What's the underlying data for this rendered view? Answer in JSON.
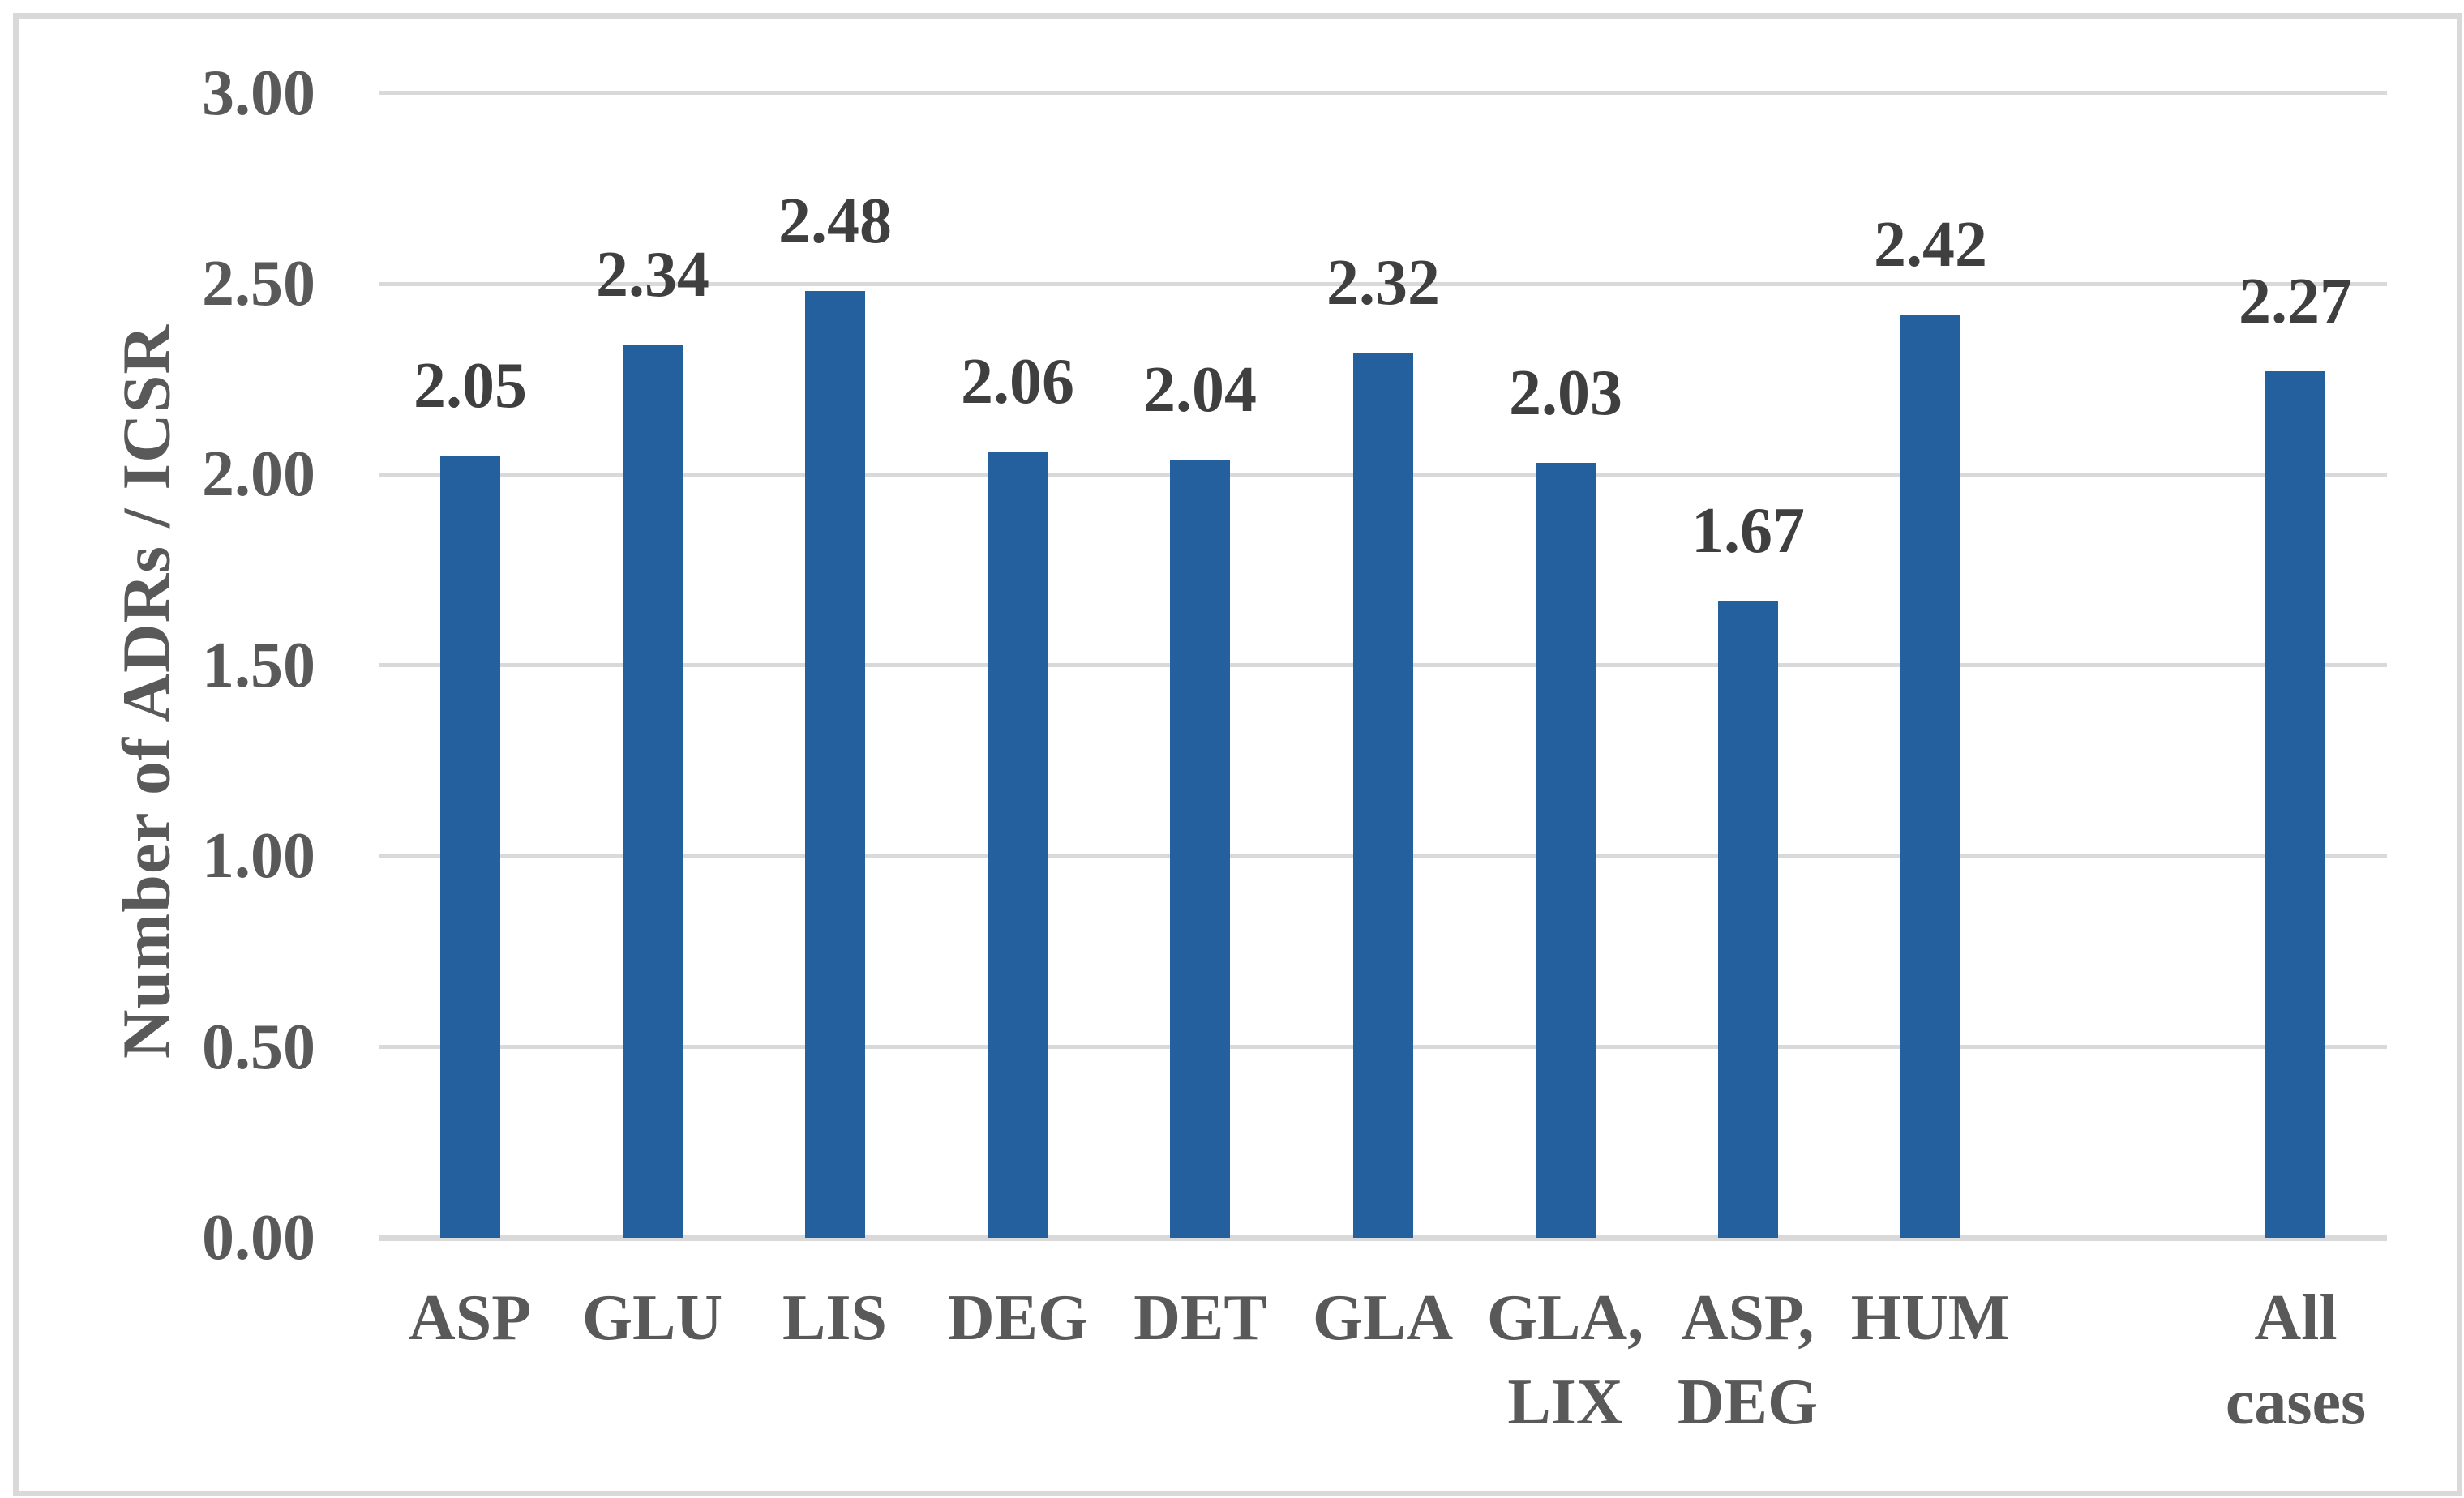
{
  "chart_data": {
    "type": "bar",
    "title": "",
    "xlabel": "",
    "ylabel": "Number of ADRs / ICSR",
    "categories": [
      [
        "ASP"
      ],
      [
        "GLU"
      ],
      [
        "LIS"
      ],
      [
        "DEG"
      ],
      [
        "DET"
      ],
      [
        "GLA"
      ],
      [
        "GLA,",
        "LIX"
      ],
      [
        "ASP,",
        "DEG"
      ],
      [
        "HUM"
      ],
      [
        "All",
        "cases"
      ]
    ],
    "values": [
      2.05,
      2.34,
      2.48,
      2.06,
      2.04,
      2.32,
      2.03,
      1.67,
      2.42,
      2.27
    ],
    "data_labels": [
      "2.05",
      "2.34",
      "2.48",
      "2.06",
      "2.04",
      "2.32",
      "2.03",
      "1.67",
      "2.42",
      "2.27"
    ],
    "yticks": [
      "0.00",
      "0.50",
      "1.00",
      "1.50",
      "2.00",
      "2.50",
      "3.00"
    ],
    "ylim": [
      0,
      3
    ],
    "grid": "horizontal-major-gridlines",
    "legend": "none",
    "gap_before_last_category": true,
    "colors": {
      "bar": "#245F9E",
      "gridline": "#D9D9D9",
      "baseline": "#D9D9D9",
      "tick_label": "#595959",
      "data_label": "#3F3F3F",
      "axis_title": "#595959",
      "figure_border": "#D9D9D9",
      "background": "#FFFFFF"
    }
  }
}
